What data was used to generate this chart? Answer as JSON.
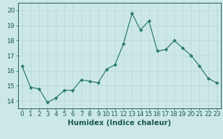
{
  "x": [
    0,
    1,
    2,
    3,
    4,
    5,
    6,
    7,
    8,
    9,
    10,
    11,
    12,
    13,
    14,
    15,
    16,
    17,
    18,
    19,
    20,
    21,
    22,
    23
  ],
  "y": [
    16.3,
    14.9,
    14.8,
    13.9,
    14.2,
    14.7,
    14.7,
    15.4,
    15.3,
    15.2,
    16.1,
    16.4,
    17.8,
    19.8,
    18.7,
    19.3,
    17.3,
    17.4,
    18.0,
    17.5,
    17.0,
    16.3,
    15.5,
    15.2
  ],
  "line_color": "#2a7a6a",
  "marker": "D",
  "marker_size": 2.5,
  "bg_color": "#cce8e6",
  "grid_color": "#b8d8d5",
  "tick_color": "#1a5a4a",
  "xlabel": "Humidex (Indice chaleur)",
  "ylim": [
    13.5,
    20.5
  ],
  "xlim": [
    -0.5,
    23.5
  ],
  "yticks": [
    14,
    15,
    16,
    17,
    18,
    19,
    20
  ],
  "xticks": [
    0,
    1,
    2,
    3,
    4,
    5,
    6,
    7,
    8,
    9,
    10,
    11,
    12,
    13,
    14,
    15,
    16,
    17,
    18,
    19,
    20,
    21,
    22,
    23
  ],
  "label_fontsize": 7.5,
  "tick_fontsize": 6.5
}
